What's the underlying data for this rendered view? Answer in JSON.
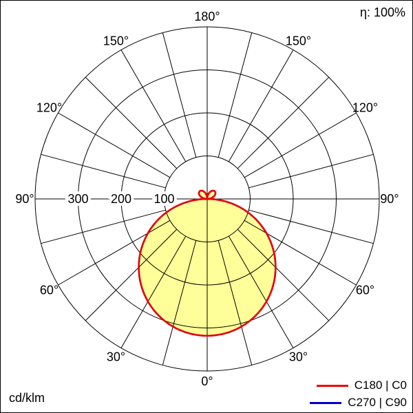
{
  "chart_data": {
    "type": "polar",
    "efficiency_label": "η: 100%",
    "unit_label": "cd/klm",
    "angle_step_deg": 15,
    "angle_label_step_deg": 30,
    "rings_cd_per_klm": [
      100,
      200,
      300,
      400
    ],
    "ring_labels": [
      {
        "value": 300,
        "text": "300"
      },
      {
        "value": 200,
        "text": "200"
      },
      {
        "value": 100,
        "text": "100"
      }
    ],
    "angle_labels": [
      {
        "deg": 0,
        "text": "0°"
      },
      {
        "deg": 30,
        "text": "30°"
      },
      {
        "deg": 60,
        "text": "60°"
      },
      {
        "deg": 90,
        "text": "90°"
      },
      {
        "deg": 120,
        "text": "120°"
      },
      {
        "deg": 150,
        "text": "150°"
      },
      {
        "deg": 180,
        "text": "180°"
      }
    ],
    "legend": [
      {
        "label": "C180 | C0",
        "color": "#ee0000"
      },
      {
        "label": "C270 | C90",
        "color": "#0000cc"
      }
    ],
    "fill_color": "#ffff99",
    "grid_color": "#000000",
    "series": [
      {
        "name": "C180 | C0",
        "color": "#ee0000",
        "plane": "C0-C180",
        "gamma_deg": [
          0,
          15,
          30,
          45,
          60,
          75,
          90,
          105,
          120,
          135,
          150,
          165,
          180
        ],
        "cd_per_klm": [
          318,
          307,
          275,
          225,
          159,
          82,
          0,
          13,
          22,
          25,
          22,
          13,
          0
        ],
        "symmetric": true,
        "i0_cd_per_klm": 318,
        "upper_lobe_peak_cd_per_klm": 25
      },
      {
        "name": "C270 | C90",
        "color": "#0000cc",
        "plane": "C90-C270",
        "gamma_deg": [
          0,
          15,
          30,
          45,
          60,
          75,
          90,
          105,
          120,
          135,
          150,
          165,
          180
        ],
        "cd_per_klm": [
          318,
          307,
          275,
          225,
          159,
          82,
          0,
          13,
          22,
          25,
          22,
          13,
          0
        ],
        "symmetric": true,
        "i0_cd_per_klm": 318,
        "upper_lobe_peak_cd_per_klm": 25
      }
    ]
  }
}
